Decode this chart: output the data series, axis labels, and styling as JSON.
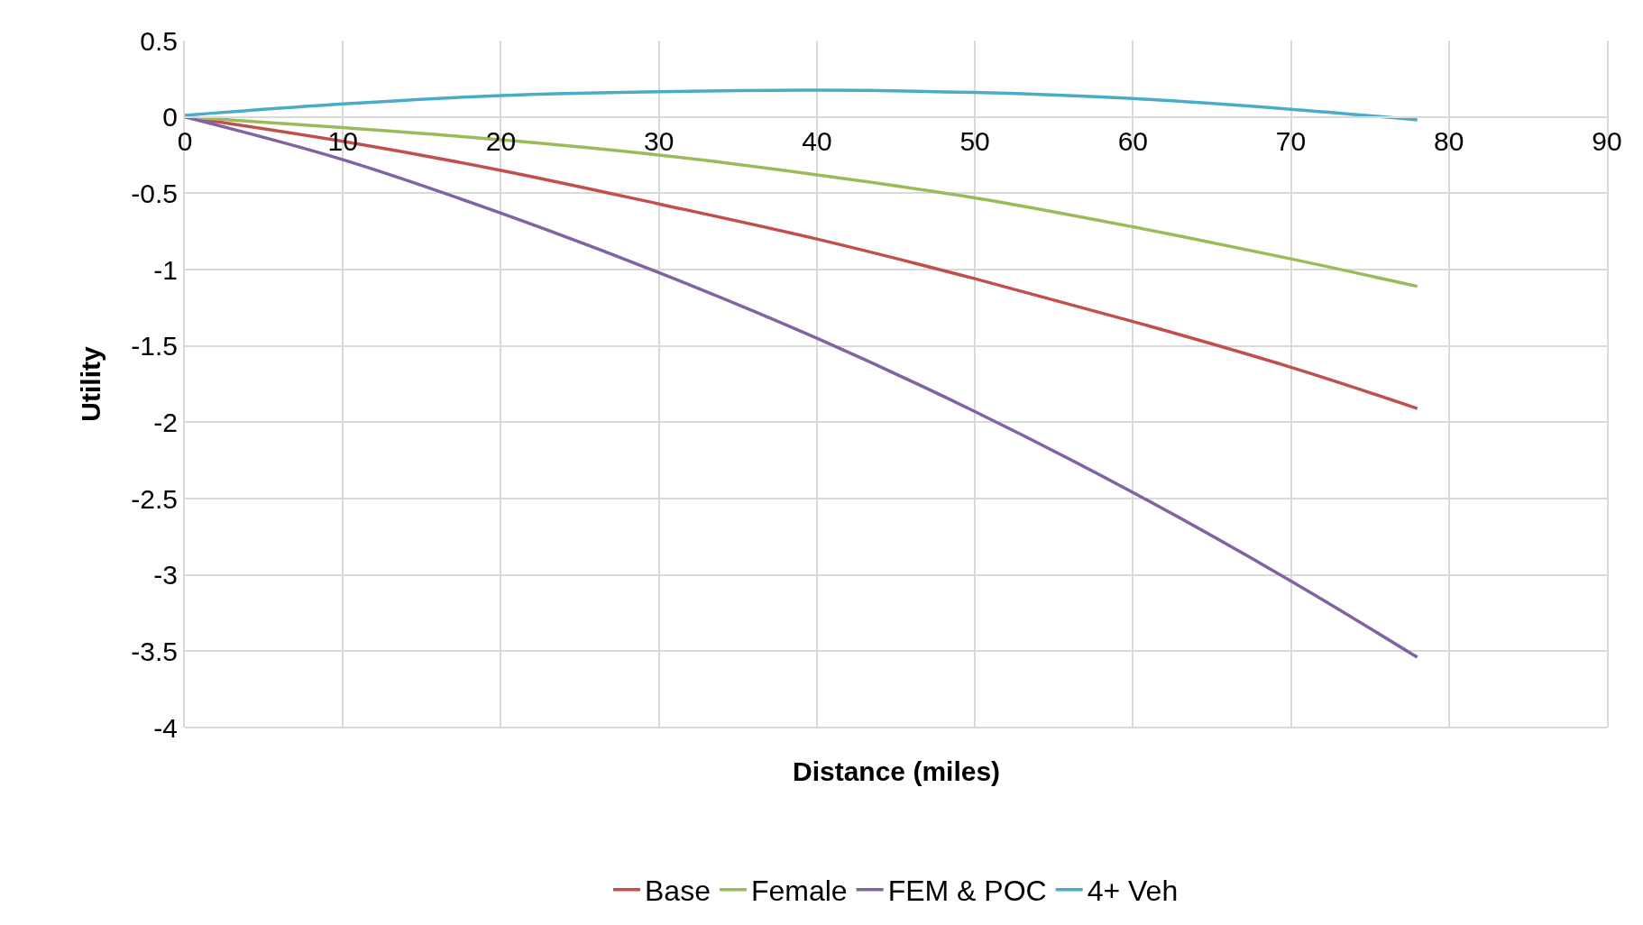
{
  "chart_data": {
    "type": "line",
    "xlabel": "Distance (miles)",
    "ylabel": "Utility",
    "x": [
      0,
      10,
      20,
      30,
      40,
      50,
      60,
      70,
      78
    ],
    "series": [
      {
        "name": "Base",
        "color": "#c0504d",
        "values": [
          0,
          -0.16,
          -0.35,
          -0.57,
          -0.8,
          -1.06,
          -1.34,
          -1.64,
          -1.91
        ]
      },
      {
        "name": "Female",
        "color": "#9bbb59",
        "values": [
          0,
          -0.07,
          -0.15,
          -0.25,
          -0.38,
          -0.53,
          -0.72,
          -0.93,
          -1.11
        ]
      },
      {
        "name": "FEM & POC",
        "color": "#8064a2",
        "values": [
          0,
          -0.28,
          -0.63,
          -1.02,
          -1.45,
          -1.93,
          -2.46,
          -3.04,
          -3.54
        ]
      },
      {
        "name": "4+ Veh",
        "color": "#4bacc6",
        "values": [
          0.01,
          0.085,
          0.14,
          0.165,
          0.175,
          0.16,
          0.12,
          0.05,
          -0.02
        ]
      }
    ],
    "xlim": [
      0,
      90
    ],
    "xticks": [
      0,
      10,
      20,
      30,
      40,
      50,
      60,
      70,
      80,
      90
    ],
    "ylim": [
      -4,
      0.5
    ],
    "yticks": [
      -4,
      -3.5,
      -3,
      -2.5,
      -2,
      -1.5,
      -1,
      -0.5,
      0,
      0.5
    ],
    "grid": true,
    "legend": "bottom",
    "marker": "none",
    "line_style": "solid"
  }
}
